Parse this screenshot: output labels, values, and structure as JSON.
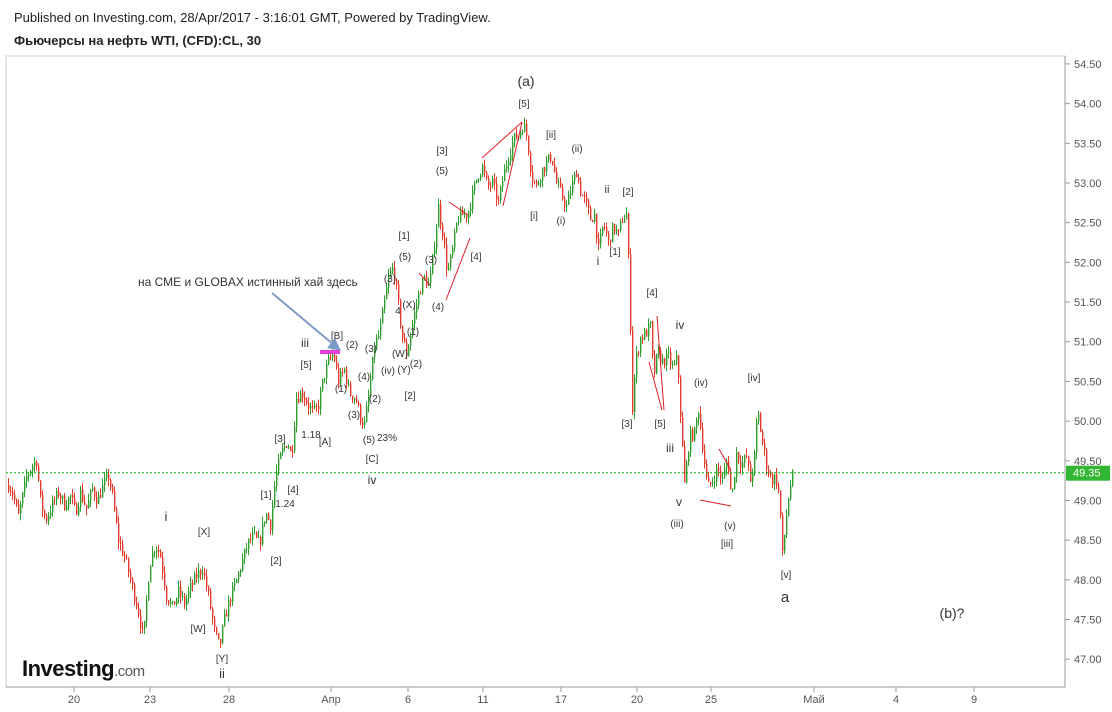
{
  "header": {
    "published": "Published on Investing.com, 28/Apr/2017 - 3:16:01 GMT, Powered by TradingView.",
    "title": "Фьючерсы на нефть WTI, (CFD):CL, 30"
  },
  "logo": {
    "name": "Investing",
    "suffix": ".com"
  },
  "chart_data": {
    "type": "candlestick",
    "ylim": [
      46.65,
      54.6
    ],
    "y_ticks": [
      "54.50",
      "54.00",
      "53.50",
      "53.00",
      "52.50",
      "52.00",
      "51.50",
      "51.00",
      "50.50",
      "50.00",
      "49.50",
      "49.00",
      "48.50",
      "48.00",
      "47.50",
      "47.00"
    ],
    "x_ticks": [
      "20",
      "23",
      "28",
      "Апр",
      "6",
      "11",
      "17",
      "20",
      "25",
      "Май",
      "4",
      "9"
    ],
    "last_price": "49.35",
    "colors": {
      "up": "#2e9e2e",
      "down": "#e33a2e",
      "price_line": "#00b000",
      "annotation": "#333333",
      "wave_line": "#e0202a",
      "arrow": "#7e9bc8",
      "marker": "#e23fd4"
    },
    "price_path": [
      [
        0,
        48.9
      ],
      [
        6,
        49.25
      ],
      [
        12,
        49.1
      ],
      [
        18,
        48.8
      ],
      [
        26,
        49.3
      ],
      [
        32,
        49.45
      ],
      [
        36,
        49.5
      ],
      [
        40,
        49.0
      ],
      [
        45,
        48.75
      ],
      [
        52,
        48.95
      ],
      [
        58,
        49.1
      ],
      [
        64,
        48.95
      ],
      [
        70,
        49.05
      ],
      [
        75,
        48.85
      ],
      [
        80,
        49.1
      ],
      [
        86,
        48.9
      ],
      [
        92,
        49.15
      ],
      [
        97,
        49.0
      ],
      [
        103,
        49.2
      ],
      [
        108,
        49.3
      ],
      [
        112,
        49.05
      ],
      [
        118,
        48.5
      ],
      [
        125,
        48.25
      ],
      [
        132,
        47.9
      ],
      [
        138,
        47.6
      ],
      [
        143,
        47.25
      ],
      [
        149,
        48.2
      ],
      [
        155,
        48.45
      ],
      [
        160,
        48.3
      ],
      [
        166,
        47.8
      ],
      [
        172,
        47.65
      ],
      [
        178,
        47.85
      ],
      [
        184,
        47.7
      ],
      [
        190,
        47.9
      ],
      [
        196,
        48.05
      ],
      [
        202,
        48.15
      ],
      [
        208,
        47.8
      ],
      [
        214,
        47.35
      ],
      [
        219,
        47.15
      ],
      [
        224,
        47.5
      ],
      [
        229,
        47.75
      ],
      [
        235,
        47.95
      ],
      [
        241,
        48.2
      ],
      [
        247,
        48.45
      ],
      [
        253,
        48.55
      ],
      [
        259,
        48.45
      ],
      [
        265,
        48.85
      ],
      [
        270,
        48.7
      ],
      [
        275,
        49.3
      ],
      [
        281,
        49.6
      ],
      [
        287,
        49.75
      ],
      [
        291,
        49.55
      ],
      [
        296,
        50.3
      ],
      [
        302,
        50.35
      ],
      [
        308,
        50.2
      ],
      [
        313,
        50.1
      ],
      [
        318,
        50.2
      ],
      [
        323,
        50.55
      ],
      [
        328,
        50.75
      ],
      [
        333,
        50.85
      ],
      [
        338,
        50.5
      ],
      [
        344,
        50.65
      ],
      [
        349,
        50.35
      ],
      [
        355,
        50.3
      ],
      [
        360,
        50.05
      ],
      [
        364,
        49.95
      ],
      [
        369,
        50.4
      ],
      [
        374,
        50.95
      ],
      [
        379,
        51.1
      ],
      [
        384,
        51.5
      ],
      [
        388,
        51.8
      ],
      [
        393,
        51.95
      ],
      [
        398,
        51.45
      ],
      [
        402,
        51.05
      ],
      [
        406,
        50.85
      ],
      [
        410,
        51.1
      ],
      [
        414,
        51.35
      ],
      [
        419,
        51.65
      ],
      [
        424,
        51.8
      ],
      [
        429,
        51.7
      ],
      [
        434,
        52.25
      ],
      [
        438,
        52.7
      ],
      [
        443,
        52.3
      ],
      [
        447,
        51.85
      ],
      [
        452,
        52.15
      ],
      [
        457,
        52.55
      ],
      [
        462,
        52.6
      ],
      [
        467,
        52.6
      ],
      [
        472,
        52.85
      ],
      [
        477,
        53.1
      ],
      [
        482,
        53.2
      ],
      [
        487,
        52.95
      ],
      [
        492,
        53.0
      ],
      [
        498,
        52.75
      ],
      [
        503,
        53.1
      ],
      [
        508,
        53.35
      ],
      [
        513,
        53.55
      ],
      [
        518,
        53.6
      ],
      [
        523,
        53.75
      ],
      [
        527,
        53.55
      ],
      [
        531,
        53.1
      ],
      [
        536,
        52.95
      ],
      [
        541,
        53.15
      ],
      [
        546,
        53.25
      ],
      [
        551,
        53.35
      ],
      [
        556,
        53.0
      ],
      [
        561,
        52.85
      ],
      [
        566,
        52.7
      ],
      [
        571,
        52.95
      ],
      [
        576,
        53.15
      ],
      [
        580,
        52.9
      ],
      [
        585,
        52.75
      ],
      [
        590,
        52.55
      ],
      [
        594,
        52.6
      ],
      [
        598,
        52.15
      ],
      [
        603,
        52.5
      ],
      [
        608,
        52.25
      ],
      [
        613,
        52.45
      ],
      [
        618,
        52.35
      ],
      [
        622,
        52.55
      ],
      [
        626,
        52.6
      ],
      [
        629,
        51.75
      ],
      [
        632,
        50.15
      ],
      [
        635,
        50.75
      ],
      [
        640,
        51.05
      ],
      [
        645,
        51.1
      ],
      [
        650,
        51.2
      ],
      [
        653,
        50.55
      ],
      [
        657,
        50.85
      ],
      [
        662,
        50.75
      ],
      [
        668,
        50.8
      ],
      [
        673,
        50.65
      ],
      [
        677,
        50.8
      ],
      [
        680,
        50.1
      ],
      [
        684,
        49.2
      ],
      [
        689,
        49.8
      ],
      [
        694,
        49.85
      ],
      [
        698,
        50.15
      ],
      [
        702,
        49.7
      ],
      [
        707,
        49.15
      ],
      [
        712,
        49.25
      ],
      [
        717,
        49.4
      ],
      [
        722,
        49.25
      ],
      [
        727,
        49.55
      ],
      [
        731,
        49.0
      ],
      [
        736,
        49.6
      ],
      [
        741,
        49.45
      ],
      [
        746,
        49.55
      ],
      [
        750,
        49.25
      ],
      [
        754,
        49.55
      ],
      [
        757,
        50.15
      ],
      [
        761,
        49.8
      ],
      [
        766,
        49.45
      ],
      [
        771,
        49.25
      ],
      [
        775,
        49.3
      ],
      [
        779,
        49.05
      ],
      [
        782,
        48.3
      ],
      [
        785,
        48.7
      ],
      [
        789,
        49.15
      ],
      [
        793,
        49.35
      ]
    ],
    "labels": [
      {
        "t": "(a)",
        "x": 526,
        "y": 86,
        "s": 14
      },
      {
        "t": "[5]",
        "x": 524,
        "y": 107,
        "s": 10
      },
      {
        "t": "[ii]",
        "x": 551,
        "y": 138,
        "s": 10
      },
      {
        "t": "(ii)",
        "x": 577,
        "y": 152,
        "s": 10
      },
      {
        "t": "[i]",
        "x": 534,
        "y": 219,
        "s": 10
      },
      {
        "t": "(i)",
        "x": 561,
        "y": 224,
        "s": 10
      },
      {
        "t": "ii",
        "x": 607,
        "y": 193,
        "s": 11
      },
      {
        "t": "[2]",
        "x": 628,
        "y": 195,
        "s": 10
      },
      {
        "t": "[1]",
        "x": 615,
        "y": 255,
        "s": 10
      },
      {
        "t": "i",
        "x": 598,
        "y": 265,
        "s": 12
      },
      {
        "t": "[3]",
        "x": 442,
        "y": 154,
        "s": 10
      },
      {
        "t": "(5)",
        "x": 442,
        "y": 174,
        "s": 10
      },
      {
        "t": "[4]",
        "x": 476,
        "y": 260,
        "s": 10
      },
      {
        "t": "[1]",
        "x": 404,
        "y": 239,
        "s": 10
      },
      {
        "t": "(5)",
        "x": 405,
        "y": 260,
        "s": 10
      },
      {
        "t": "(3)",
        "x": 431,
        "y": 263,
        "s": 10
      },
      {
        "t": "(3)",
        "x": 390,
        "y": 282,
        "s": 10
      },
      {
        "t": "(4)",
        "x": 438,
        "y": 310,
        "s": 10
      },
      {
        "t": "(X)",
        "x": 409,
        "y": 308,
        "s": 10
      },
      {
        "t": "4",
        "x": 398,
        "y": 314,
        "s": 10
      },
      {
        "t": "(1)",
        "x": 413,
        "y": 335,
        "s": 10
      },
      {
        "t": "(W)",
        "x": 400,
        "y": 357,
        "s": 10
      },
      {
        "t": "(2)",
        "x": 416,
        "y": 367,
        "s": 10
      },
      {
        "t": "(Y)",
        "x": 404,
        "y": 373,
        "s": 10
      },
      {
        "t": "(iv)",
        "x": 388,
        "y": 374,
        "s": 10
      },
      {
        "t": "(3)",
        "x": 371,
        "y": 352,
        "s": 10
      },
      {
        "t": "(4)",
        "x": 364,
        "y": 380,
        "s": 10
      },
      {
        "t": "[2]",
        "x": 410,
        "y": 399,
        "s": 10
      },
      {
        "t": "iii",
        "x": 305,
        "y": 347,
        "s": 12
      },
      {
        "t": "[B]",
        "x": 337,
        "y": 339,
        "s": 10
      },
      {
        "t": "(2)",
        "x": 352,
        "y": 348,
        "s": 10
      },
      {
        "t": "[5]",
        "x": 306,
        "y": 368,
        "s": 10
      },
      {
        "t": "(1)",
        "x": 341,
        "y": 392,
        "s": 10
      },
      {
        "t": "(2)",
        "x": 375,
        "y": 402,
        "s": 10
      },
      {
        "t": "(3)",
        "x": 354,
        "y": 418,
        "s": 10
      },
      {
        "t": "(5)",
        "x": 369,
        "y": 443,
        "s": 10
      },
      {
        "t": "23%",
        "x": 387,
        "y": 441,
        "s": 10
      },
      {
        "t": "[C]",
        "x": 372,
        "y": 462,
        "s": 10
      },
      {
        "t": "iv",
        "x": 372,
        "y": 484,
        "s": 12
      },
      {
        "t": "[3]",
        "x": 280,
        "y": 442,
        "s": 10
      },
      {
        "t": "1.18",
        "x": 311,
        "y": 438,
        "s": 10
      },
      {
        "t": "[A]",
        "x": 325,
        "y": 445,
        "s": 10
      },
      {
        "t": "[4]",
        "x": 293,
        "y": 493,
        "s": 10
      },
      {
        "t": "[1]",
        "x": 266,
        "y": 498,
        "s": 10
      },
      {
        "t": "1.24",
        "x": 285,
        "y": 507,
        "s": 10
      },
      {
        "t": "[2]",
        "x": 276,
        "y": 564,
        "s": 10
      },
      {
        "t": "i",
        "x": 166,
        "y": 521,
        "s": 13
      },
      {
        "t": "[X]",
        "x": 204,
        "y": 535,
        "s": 10
      },
      {
        "t": "[W]",
        "x": 198,
        "y": 632,
        "s": 10
      },
      {
        "t": "[Y]",
        "x": 222,
        "y": 662,
        "s": 10
      },
      {
        "t": "ii",
        "x": 222,
        "y": 678,
        "s": 13
      },
      {
        "t": "[4]",
        "x": 652,
        "y": 296,
        "s": 10
      },
      {
        "t": "iv",
        "x": 680,
        "y": 329,
        "s": 12
      },
      {
        "t": "[3]",
        "x": 627,
        "y": 427,
        "s": 10
      },
      {
        "t": "[5]",
        "x": 660,
        "y": 427,
        "s": 10
      },
      {
        "t": "iii",
        "x": 670,
        "y": 452,
        "s": 12
      },
      {
        "t": "(iv)",
        "x": 701,
        "y": 386,
        "s": 10
      },
      {
        "t": "[iv]",
        "x": 754,
        "y": 381,
        "s": 10
      },
      {
        "t": "v",
        "x": 679,
        "y": 506,
        "s": 12
      },
      {
        "t": "(iii)",
        "x": 677,
        "y": 527,
        "s": 10
      },
      {
        "t": "(v)",
        "x": 730,
        "y": 529,
        "s": 10
      },
      {
        "t": "[iii]",
        "x": 727,
        "y": 547,
        "s": 10
      },
      {
        "t": "[v]",
        "x": 786,
        "y": 578,
        "s": 10
      },
      {
        "t": "a",
        "x": 785,
        "y": 602,
        "s": 15
      },
      {
        "t": "(b)?",
        "x": 952,
        "y": 618,
        "s": 14
      }
    ],
    "annotation_note": "на СМЕ и GLOBAX истинный хай здесь"
  }
}
